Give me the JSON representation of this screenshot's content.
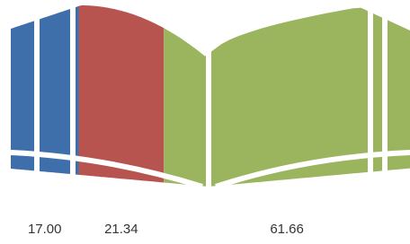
{
  "chart_data": {
    "type": "book",
    "values": [
      17,
      21.34,
      61.66
    ],
    "value_labels": [
      "17.00",
      "21.34",
      "61.66"
    ],
    "colors": [
      "#3f6faa",
      "#b85450",
      "#9bb55f"
    ]
  }
}
